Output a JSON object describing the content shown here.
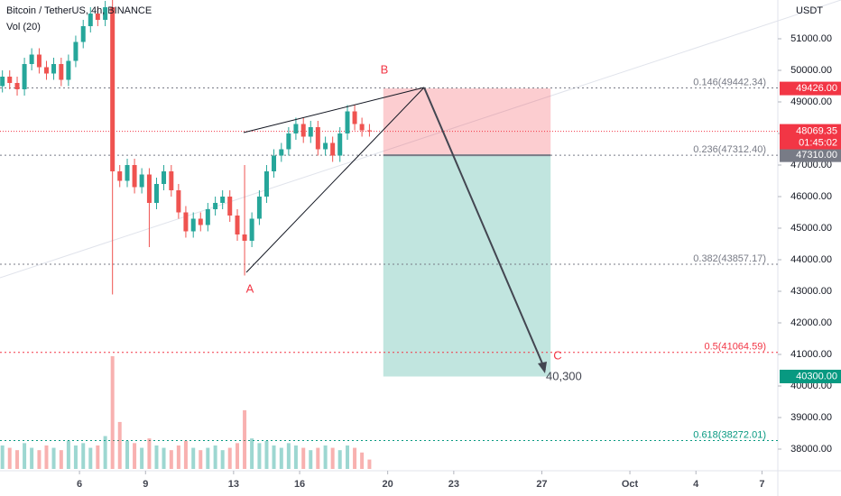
{
  "chart_data": {
    "type": "candlestick",
    "title": "Bitcoin / TetherUS, 4h, BINANCE",
    "volume_title": "Vol (20)",
    "currency": "USDT",
    "x": [
      2.5,
      2.83,
      3.17,
      3.5,
      3.83,
      4.17,
      4.5,
      4.83,
      5.17,
      5.5,
      5.83,
      6.17,
      6.5,
      6.83,
      7.17,
      7.5,
      7.83,
      8.17,
      8.5,
      8.83,
      9.17,
      9.5,
      9.83,
      10.17,
      10.5,
      10.83,
      11.17,
      11.5,
      11.83,
      12.17,
      12.5,
      12.83,
      13.17,
      13.5,
      13.83,
      14.17,
      14.5,
      14.83,
      15.17,
      15.5,
      15.83,
      16.17,
      16.5,
      16.83,
      17.17,
      17.5,
      17.83,
      18.17,
      18.5,
      18.83,
      19.17
    ],
    "open": [
      49500,
      49800,
      49600,
      49400,
      50200,
      50500,
      50100,
      49900,
      50200,
      49700,
      50300,
      50900,
      51400,
      51800,
      51600,
      52000,
      46800,
      46500,
      47000,
      46300,
      46700,
      45800,
      46400,
      46800,
      46200,
      45500,
      44900,
      45300,
      45100,
      45600,
      45800,
      46000,
      45400,
      44800,
      44600,
      45300,
      46000,
      46800,
      47300,
      47500,
      48000,
      48300,
      47900,
      48200,
      47500,
      47700,
      47300,
      48000,
      48700,
      48300,
      48100
    ],
    "high": [
      50000,
      50000,
      49800,
      50400,
      50700,
      50700,
      50300,
      50400,
      50400,
      50500,
      51100,
      51600,
      52000,
      52000,
      52200,
      52300,
      47000,
      47200,
      47200,
      46900,
      46900,
      46600,
      47000,
      47000,
      46400,
      45700,
      45500,
      45500,
      45800,
      46000,
      46200,
      46200,
      45600,
      47000,
      45500,
      46200,
      47000,
      47500,
      47700,
      48200,
      48500,
      48500,
      48400,
      48400,
      47900,
      47900,
      48200,
      48900,
      48900,
      48500,
      48300
    ],
    "low": [
      49300,
      49400,
      49200,
      49200,
      50000,
      49900,
      49700,
      49700,
      49500,
      49500,
      50100,
      50700,
      51200,
      51400,
      51400,
      42900,
      46300,
      46300,
      46100,
      46100,
      44400,
      45600,
      46200,
      46000,
      45300,
      44700,
      44700,
      44900,
      44900,
      45400,
      45600,
      45200,
      44600,
      43500,
      44400,
      45100,
      45800,
      46600,
      47100,
      47300,
      47800,
      47700,
      47700,
      47300,
      47300,
      47100,
      47100,
      47800,
      48100,
      47900,
      47900
    ],
    "close": [
      49800,
      49600,
      49400,
      50200,
      50500,
      50100,
      49900,
      50200,
      49700,
      50300,
      50900,
      51400,
      51800,
      51600,
      52000,
      46800,
      46500,
      47000,
      46300,
      46700,
      45800,
      46400,
      46800,
      46200,
      45500,
      44900,
      45300,
      45100,
      45600,
      45800,
      46000,
      45400,
      44800,
      44600,
      45300,
      46000,
      46800,
      47300,
      47500,
      48000,
      48300,
      47900,
      48200,
      47500,
      47700,
      47300,
      48000,
      48700,
      48300,
      48100,
      48069.35
    ],
    "volume": [
      10,
      9,
      8,
      11,
      9,
      8,
      10,
      9,
      8,
      12,
      10,
      11,
      9,
      10,
      14,
      48,
      20,
      12,
      11,
      9,
      13,
      10,
      9,
      8,
      10,
      12,
      9,
      8,
      9,
      10,
      8,
      9,
      11,
      25,
      13,
      11,
      12,
      10,
      9,
      11,
      10,
      9,
      8,
      9,
      10,
      9,
      8,
      10,
      9,
      7,
      4
    ],
    "up_color": "#26a69a",
    "down_color": "#ef5350",
    "xlim": [
      2.39,
      37.72
    ],
    "xticks": [
      6,
      9,
      13,
      16,
      20,
      23,
      27,
      {
        "value": 31,
        "label": "Oct"
      },
      {
        "value": 34,
        "label": "4"
      },
      {
        "value": 37,
        "label": "7"
      }
    ],
    "ylim": [
      37371,
      52229
    ],
    "yticks": [
      {
        "value": 38000,
        "label": "38000.00"
      },
      {
        "value": 39000,
        "label": "39000.00"
      },
      {
        "value": 40000,
        "label": "40000.00"
      },
      {
        "value": 41000,
        "label": "41000.00"
      },
      {
        "value": 42000,
        "label": "42000.00"
      },
      {
        "value": 43000,
        "label": "43000.00"
      },
      {
        "value": 44000,
        "label": "44000.00"
      },
      {
        "value": 45000,
        "label": "45000.00"
      },
      {
        "value": 46000,
        "label": "46000.00"
      },
      {
        "value": 47000,
        "label": "47000.00"
      },
      {
        "value": 48000,
        "label": "48000.00"
      },
      {
        "value": 49000,
        "label": "49000.00"
      },
      {
        "value": 50000,
        "label": "50000.00"
      },
      {
        "value": 51000,
        "label": "51000.00"
      }
    ],
    "fib_levels": [
      {
        "value": 49442.34,
        "label": "0.146(49442.34)",
        "color": "#787b86"
      },
      {
        "value": 47312.4,
        "label": "0.236(47312.40)",
        "color": "#787b86"
      },
      {
        "value": 43857.17,
        "label": "0.382(43857.17)",
        "color": "#787b86"
      },
      {
        "value": 41064.59,
        "label": "0.5(41064.59)",
        "color": "#f23645"
      },
      {
        "value": 38272.01,
        "label": "0.618(38272.01)",
        "color": "#089981"
      }
    ],
    "current_price": {
      "value": 48069.35,
      "countdown": "01:45:02",
      "color": "#f23645"
    },
    "position": {
      "x": [
        19.8,
        27.4
      ],
      "stop": {
        "value": 49426,
        "label": "49426.00",
        "color": "#f23645"
      },
      "entry": {
        "value": 47310,
        "label": "47310.00",
        "color": "#787b86"
      },
      "target": {
        "value": 40300,
        "label": "40300.00",
        "color": "#089981"
      },
      "target_text": "40,300"
    },
    "points": [
      "A",
      "B",
      "C"
    ]
  }
}
